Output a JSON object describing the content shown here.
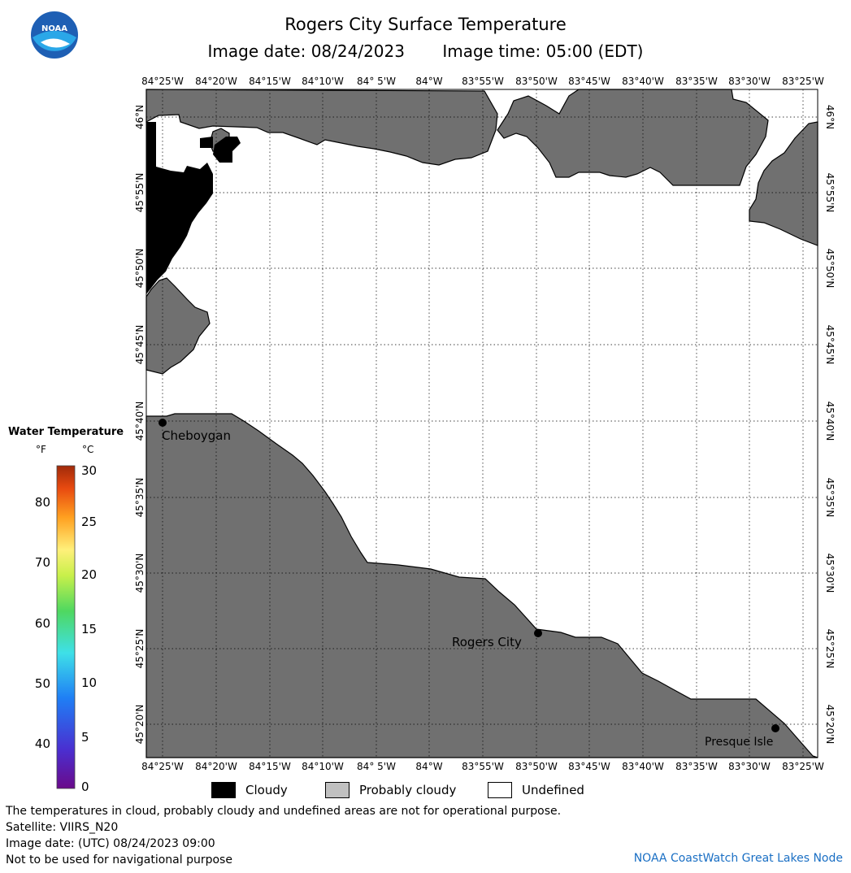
{
  "title": "Rogers City Surface Temperature",
  "image_date_label": "Image date: 08/24/2023",
  "image_time_label": "Image time: 05:00 (EDT)",
  "logo_text": "NOAA",
  "lon_ticks": [
    "84°25'W",
    "84°20'W",
    "84°15'W",
    "84°10'W",
    "84° 5'W",
    "84°W",
    "83°55'W",
    "83°50'W",
    "83°45'W",
    "83°40'W",
    "83°35'W",
    "83°30'W",
    "83°25'W"
  ],
  "lat_ticks": [
    "46°N",
    "45°55'N",
    "45°50'N",
    "45°45'N",
    "45°40'N",
    "45°35'N",
    "45°30'N",
    "45°25'N",
    "45°20'N"
  ],
  "places": {
    "cheboygan": "Cheboygan",
    "rogers_city": "Rogers City",
    "presque_isle": "Presque Isle"
  },
  "colorbar": {
    "title": "Water Temperature",
    "unit_f": "°F",
    "unit_c": "°C",
    "f_ticks": [
      "80",
      "70",
      "60",
      "50",
      "40"
    ],
    "c_ticks": [
      "30",
      "25",
      "20",
      "15",
      "10",
      "5",
      "0"
    ]
  },
  "legend": {
    "cloudy": "Cloudy",
    "probably_cloudy": "Probably cloudy",
    "undefined": "Undefined"
  },
  "colors": {
    "land": "#707070",
    "cloudy": "#000000",
    "probably_cloudy": "#c0c0c0",
    "undefined": "#ffffff",
    "credit": "#1a6fc4"
  },
  "footer": {
    "line1": "The temperatures in cloud, probably cloudy and undefined areas are not for operational purpose.",
    "line2": "Satellite: VIIRS_N20",
    "line3": "Image date: (UTC) 08/24/2023  09:00",
    "line4": "Not to be used for navigational purpose",
    "credit": "NOAA CoastWatch Great Lakes Node"
  }
}
